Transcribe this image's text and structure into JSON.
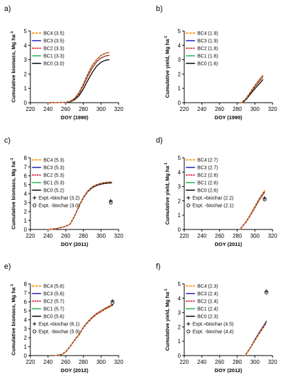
{
  "chart_data": [
    {
      "panel": "a)",
      "type": "line",
      "xlabel": "DOY (1990)",
      "ylabel": "Cumulative biomass, Mg ha",
      "ylabel_sup": "-1",
      "xlim": [
        220,
        320
      ],
      "ylim": [
        0,
        5
      ],
      "xticks": [
        "220",
        "240",
        "260",
        "280",
        "300",
        "320"
      ],
      "yticks": [
        "0",
        "1",
        "2",
        "3",
        "4",
        "5"
      ],
      "legend": [
        "BC4 (3.5)",
        "BC3 (3.5)",
        "BC2 (3.3)",
        "BC1 (3.3)",
        "BC0 (3.0)"
      ],
      "series": [
        {
          "name": "BC4 (3.5)",
          "color": "#FF8C00",
          "dash": "2,3",
          "x": [
            240,
            260,
            265,
            270,
            275,
            280,
            285,
            290,
            295,
            300,
            305,
            309
          ],
          "y": [
            0,
            0.02,
            0.1,
            0.3,
            0.7,
            1.3,
            2.0,
            2.6,
            3.0,
            3.3,
            3.45,
            3.5
          ]
        },
        {
          "name": "BC3 (3.5)",
          "color": "#1F1FB4",
          "dash": "",
          "x": [
            240,
            260,
            265,
            270,
            275,
            280,
            285,
            290,
            295,
            300,
            305,
            309
          ],
          "y": [
            0,
            0.02,
            0.1,
            0.3,
            0.7,
            1.3,
            2.0,
            2.6,
            3.0,
            3.3,
            3.45,
            3.5
          ]
        },
        {
          "name": "BC2 (3.3)",
          "color": "#E0102A",
          "dash": "1,2.5",
          "x": [
            240,
            260,
            265,
            270,
            275,
            280,
            285,
            290,
            295,
            300,
            305,
            309
          ],
          "y": [
            0,
            0.02,
            0.09,
            0.27,
            0.62,
            1.18,
            1.85,
            2.42,
            2.85,
            3.12,
            3.26,
            3.3
          ]
        },
        {
          "name": "BC1 (3.3)",
          "color": "#22B14C",
          "dash": "",
          "x": [
            240,
            260,
            265,
            270,
            275,
            280,
            285,
            290,
            295,
            300,
            305,
            309
          ],
          "y": [
            0,
            0.02,
            0.09,
            0.27,
            0.62,
            1.18,
            1.85,
            2.42,
            2.85,
            3.12,
            3.26,
            3.3
          ]
        },
        {
          "name": "BC0 (3.0)",
          "color": "#000000",
          "dash": "",
          "x": [
            240,
            260,
            265,
            270,
            275,
            280,
            285,
            290,
            295,
            300,
            305,
            309
          ],
          "y": [
            0,
            0.01,
            0.06,
            0.2,
            0.48,
            0.95,
            1.55,
            2.1,
            2.55,
            2.82,
            2.96,
            3.0
          ]
        }
      ],
      "observed": []
    },
    {
      "panel": "b)",
      "type": "line",
      "xlabel": "DOY (1990)",
      "ylabel": "Cumulative yield, Mg ha",
      "ylabel_sup": "-1",
      "xlim": [
        220,
        320
      ],
      "ylim": [
        0,
        5
      ],
      "xticks": [
        "220",
        "240",
        "260",
        "280",
        "300",
        "320"
      ],
      "yticks": [
        "0",
        "1",
        "2",
        "3",
        "4",
        "5"
      ],
      "legend": [
        "BC4 (1.9)",
        "BC3 (1.9)",
        "BC2 (1.8)",
        "BC1 (1.8)",
        "BC0 (1.6)"
      ],
      "series": [
        {
          "name": "BC4 (1.9)",
          "color": "#FF8C00",
          "dash": "2,3",
          "x": [
            285,
            290,
            295,
            300,
            305,
            309
          ],
          "y": [
            0,
            0.3,
            0.75,
            1.2,
            1.6,
            1.9
          ]
        },
        {
          "name": "BC3 (1.9)",
          "color": "#1F1FB4",
          "dash": "",
          "x": [
            285,
            290,
            295,
            300,
            305,
            309
          ],
          "y": [
            0,
            0.3,
            0.75,
            1.2,
            1.6,
            1.9
          ]
        },
        {
          "name": "BC2 (1.8)",
          "color": "#E0102A",
          "dash": "1,2.5",
          "x": [
            285,
            290,
            295,
            300,
            305,
            309
          ],
          "y": [
            0,
            0.28,
            0.7,
            1.12,
            1.5,
            1.8
          ]
        },
        {
          "name": "BC1 (1.8)",
          "color": "#22B14C",
          "dash": "",
          "x": [
            285,
            290,
            295,
            300,
            305,
            309
          ],
          "y": [
            0,
            0.28,
            0.7,
            1.12,
            1.5,
            1.8
          ]
        },
        {
          "name": "BC0 (1.6)",
          "color": "#000000",
          "dash": "",
          "x": [
            286,
            290,
            295,
            300,
            305,
            309
          ],
          "y": [
            0,
            0.22,
            0.6,
            0.98,
            1.32,
            1.6
          ]
        }
      ],
      "observed": []
    },
    {
      "panel": "c)",
      "type": "line",
      "xlabel": "DOY (2011)",
      "ylabel": "Cumulative biomass, Mg ha",
      "ylabel_sup": "-1",
      "xlim": [
        220,
        320
      ],
      "ylim": [
        0,
        8
      ],
      "xticks": [
        "220",
        "240",
        "260",
        "280",
        "300",
        "320"
      ],
      "yticks": [
        "0",
        "1",
        "2",
        "3",
        "4",
        "5",
        "6",
        "7",
        "8"
      ],
      "legend": [
        "BC4 (5.3)",
        "BC3 (5.3)",
        "BC2 (5.3)",
        "BC1 (5.3)",
        "BC0 (5.2)",
        "Expt.+biochar (3.2)",
        "Expt. -biochar (3.0)"
      ],
      "series": [
        {
          "name": "BC4 (5.3)",
          "color": "#FF8C00",
          "dash": "2,3",
          "x": [
            240,
            250,
            260,
            265,
            270,
            275,
            280,
            285,
            290,
            295,
            300,
            305,
            312
          ],
          "y": [
            0,
            0.1,
            0.35,
            0.6,
            1.5,
            2.6,
            3.6,
            4.3,
            4.75,
            5.0,
            5.15,
            5.25,
            5.3
          ]
        },
        {
          "name": "BC3 (5.3)",
          "color": "#1F1FB4",
          "dash": "",
          "x": [
            240,
            250,
            260,
            265,
            270,
            275,
            280,
            285,
            290,
            295,
            300,
            305,
            312
          ],
          "y": [
            0,
            0.1,
            0.35,
            0.6,
            1.5,
            2.6,
            3.6,
            4.3,
            4.75,
            5.0,
            5.15,
            5.25,
            5.3
          ]
        },
        {
          "name": "BC2 (5.3)",
          "color": "#E0102A",
          "dash": "1,2.5",
          "x": [
            240,
            250,
            260,
            265,
            270,
            275,
            280,
            285,
            290,
            295,
            300,
            305,
            312
          ],
          "y": [
            0,
            0.1,
            0.35,
            0.6,
            1.5,
            2.6,
            3.6,
            4.3,
            4.75,
            5.0,
            5.15,
            5.25,
            5.3
          ]
        },
        {
          "name": "BC1 (5.3)",
          "color": "#22B14C",
          "dash": "",
          "x": [
            240,
            250,
            260,
            265,
            270,
            275,
            280,
            285,
            290,
            295,
            300,
            305,
            312
          ],
          "y": [
            0,
            0.1,
            0.35,
            0.6,
            1.5,
            2.6,
            3.6,
            4.3,
            4.75,
            5.0,
            5.15,
            5.25,
            5.3
          ]
        },
        {
          "name": "BC0 (5.2)",
          "color": "#000000",
          "dash": "",
          "x": [
            240,
            250,
            260,
            265,
            270,
            275,
            280,
            285,
            290,
            295,
            300,
            305,
            312
          ],
          "y": [
            0,
            0.1,
            0.34,
            0.58,
            1.46,
            2.55,
            3.53,
            4.22,
            4.66,
            4.91,
            5.06,
            5.15,
            5.2
          ]
        }
      ],
      "observed": [
        {
          "name": "Expt.+biochar (3.2)",
          "marker": "plus",
          "x": 311,
          "y": 3.2
        },
        {
          "name": "Expt. -biochar (3.0)",
          "marker": "circle",
          "x": 311,
          "y": 3.0
        }
      ]
    },
    {
      "panel": "d)",
      "type": "line",
      "xlabel": "DOY (2011)",
      "ylabel": "Cumulative yield, Mg ha",
      "ylabel_sup": "-1",
      "xlim": [
        220,
        320
      ],
      "ylim": [
        0,
        5
      ],
      "xticks": [
        "220",
        "240",
        "260",
        "280",
        "300",
        "320"
      ],
      "yticks": [
        "0",
        "1",
        "2",
        "3",
        "4",
        "5"
      ],
      "legend": [
        "BC4 (2.7)",
        "BC3 (2.7)",
        "BC2 (2.6)",
        "BC1 (2.6)",
        "BC0 (2.6)",
        "Expt.+biochar (2.2)",
        "Expt. -biochar (2.1)"
      ],
      "series": [
        {
          "name": "BC4 (2.7)",
          "color": "#FF8C00",
          "dash": "2,3",
          "x": [
            283,
            290,
            295,
            300,
            305,
            311
          ],
          "y": [
            0,
            0.55,
            1.05,
            1.6,
            2.15,
            2.7
          ]
        },
        {
          "name": "BC3 (2.7)",
          "color": "#1F1FB4",
          "dash": "",
          "x": [
            283,
            290,
            295,
            300,
            305,
            311
          ],
          "y": [
            0,
            0.55,
            1.05,
            1.6,
            2.15,
            2.7
          ]
        },
        {
          "name": "BC2 (2.6)",
          "color": "#E0102A",
          "dash": "1,2.5",
          "x": [
            283,
            290,
            295,
            300,
            305,
            311
          ],
          "y": [
            0,
            0.52,
            1.0,
            1.53,
            2.07,
            2.6
          ]
        },
        {
          "name": "BC1 (2.6)",
          "color": "#22B14C",
          "dash": "",
          "x": [
            283,
            290,
            295,
            300,
            305,
            311
          ],
          "y": [
            0,
            0.52,
            1.0,
            1.53,
            2.07,
            2.6
          ]
        },
        {
          "name": "BC0 (2.6)",
          "color": "#000000",
          "dash": "",
          "x": [
            283,
            290,
            295,
            300,
            305,
            311
          ],
          "y": [
            0,
            0.52,
            1.0,
            1.53,
            2.07,
            2.6
          ]
        }
      ],
      "observed": [
        {
          "name": "Expt.+biochar (2.2)",
          "marker": "plus",
          "x": 311,
          "y": 2.2
        },
        {
          "name": "Expt. -biochar (2.1)",
          "marker": "circle",
          "x": 311,
          "y": 2.1
        }
      ]
    },
    {
      "panel": "e)",
      "type": "line",
      "xlabel": "DOY (2012)",
      "ylabel": "Cumulative biomass, Mg ha",
      "ylabel_sup": "-1",
      "xlim": [
        220,
        320
      ],
      "ylim": [
        0,
        8
      ],
      "xticks": [
        "220",
        "240",
        "260",
        "280",
        "300",
        "320"
      ],
      "yticks": [
        "0",
        "1",
        "2",
        "3",
        "4",
        "5",
        "6",
        "7",
        "8"
      ],
      "legend": [
        "BC4 (5.6)",
        "BC3 (5.6)",
        "BC2 (5.7)",
        "BC1 (5.7)",
        "BC0 (5.6)",
        "Expt.+biochar (6.1)",
        "Expt. -biochar (5.9)"
      ],
      "series": [
        {
          "name": "BC4 (5.6)",
          "color": "#FF8C00",
          "dash": "2,3",
          "x": [
            248,
            255,
            260,
            265,
            270,
            275,
            280,
            285,
            290,
            295,
            300,
            305,
            310,
            313
          ],
          "y": [
            0,
            0.1,
            0.4,
            1.0,
            1.7,
            2.3,
            3.1,
            3.7,
            4.2,
            4.6,
            4.9,
            5.2,
            5.45,
            5.6
          ]
        },
        {
          "name": "BC3 (5.6)",
          "color": "#1F1FB4",
          "dash": "",
          "x": [
            248,
            255,
            260,
            265,
            270,
            275,
            280,
            285,
            290,
            295,
            300,
            305,
            310,
            313
          ],
          "y": [
            0,
            0.1,
            0.4,
            1.0,
            1.7,
            2.3,
            3.1,
            3.7,
            4.2,
            4.6,
            4.9,
            5.2,
            5.45,
            5.6
          ]
        },
        {
          "name": "BC2 (5.7)",
          "color": "#E0102A",
          "dash": "1,2.5",
          "x": [
            248,
            255,
            260,
            265,
            270,
            275,
            280,
            285,
            290,
            295,
            300,
            305,
            310,
            313
          ],
          "y": [
            0,
            0.1,
            0.41,
            1.02,
            1.73,
            2.34,
            3.16,
            3.77,
            4.28,
            4.69,
            4.99,
            5.3,
            5.55,
            5.7
          ]
        },
        {
          "name": "BC1 (5.7)",
          "color": "#22B14C",
          "dash": "",
          "x": [
            248,
            255,
            260,
            265,
            270,
            275,
            280,
            285,
            290,
            295,
            300,
            305,
            310,
            313
          ],
          "y": [
            0,
            0.1,
            0.41,
            1.02,
            1.73,
            2.34,
            3.16,
            3.77,
            4.28,
            4.69,
            4.99,
            5.3,
            5.55,
            5.7
          ]
        },
        {
          "name": "BC0 (5.6)",
          "color": "#000000",
          "dash": "",
          "x": [
            248,
            255,
            260,
            265,
            270,
            275,
            280,
            285,
            290,
            295,
            300,
            305,
            310,
            313
          ],
          "y": [
            0,
            0.1,
            0.4,
            1.0,
            1.7,
            2.3,
            3.1,
            3.7,
            4.2,
            4.6,
            4.9,
            5.2,
            5.45,
            5.6
          ]
        }
      ],
      "observed": [
        {
          "name": "Expt.+biochar (6.1)",
          "marker": "plus",
          "x": 313,
          "y": 6.1
        },
        {
          "name": "Expt. -biochar (5.9)",
          "marker": "circle",
          "x": 313,
          "y": 5.9
        }
      ]
    },
    {
      "panel": "f)",
      "type": "line",
      "xlabel": "DOY (2012)",
      "ylabel": "Cumulative yield, Mg ha",
      "ylabel_sup": "-1",
      "xlim": [
        220,
        320
      ],
      "ylim": [
        0,
        5
      ],
      "xticks": [
        "220",
        "240",
        "260",
        "280",
        "300",
        "320"
      ],
      "yticks": [
        "0",
        "1",
        "2",
        "3",
        "4",
        "5"
      ],
      "legend": [
        "BC4 (2.3)",
        "BC3 (2.4)",
        "BC2 (2.4)",
        "BC1 (2.4)",
        "BC0 (2.3)",
        "Expt.+biochar (4.5)",
        "Expt. -biochar (4.4)"
      ],
      "series": [
        {
          "name": "BC4 (2.3)",
          "color": "#FF8C00",
          "dash": "2,3",
          "x": [
            289,
            295,
            300,
            305,
            310,
            313
          ],
          "y": [
            0,
            0.55,
            1.05,
            1.55,
            2.0,
            2.3
          ]
        },
        {
          "name": "BC3 (2.4)",
          "color": "#1F1FB4",
          "dash": "",
          "x": [
            289,
            295,
            300,
            305,
            310,
            313
          ],
          "y": [
            0,
            0.57,
            1.1,
            1.62,
            2.08,
            2.4
          ]
        },
        {
          "name": "BC2 (2.4)",
          "color": "#E0102A",
          "dash": "1,2.5",
          "x": [
            289,
            295,
            300,
            305,
            310,
            313
          ],
          "y": [
            0,
            0.57,
            1.1,
            1.62,
            2.08,
            2.4
          ]
        },
        {
          "name": "BC1 (2.4)",
          "color": "#22B14C",
          "dash": "",
          "x": [
            289,
            295,
            300,
            305,
            310,
            313
          ],
          "y": [
            0,
            0.57,
            1.1,
            1.62,
            2.08,
            2.4
          ]
        },
        {
          "name": "BC0 (2.3)",
          "color": "#000000",
          "dash": "",
          "x": [
            289,
            295,
            300,
            305,
            310,
            313
          ],
          "y": [
            0,
            0.55,
            1.05,
            1.55,
            2.0,
            2.3
          ]
        }
      ],
      "observed": [
        {
          "name": "Expt.+biochar (4.5)",
          "marker": "plus",
          "x": 313,
          "y": 4.5
        },
        {
          "name": "Expt. -biochar (4.4)",
          "marker": "circle",
          "x": 313,
          "y": 4.4
        }
      ]
    }
  ]
}
